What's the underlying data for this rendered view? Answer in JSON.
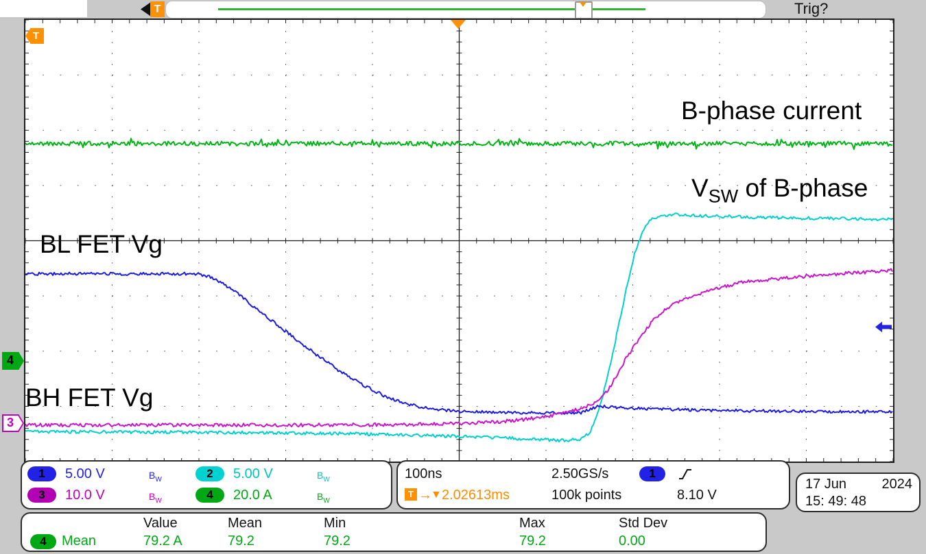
{
  "top": {
    "trig_status": "Trig?",
    "trigger_label": "T"
  },
  "markers": {
    "t_flag": "T",
    "ch4": "4",
    "ch3": "3"
  },
  "labels": {
    "ch4_trace": "B-phase current",
    "vsw_main": "V",
    "vsw_sub": "SW",
    "vsw_rest": " of B-phase",
    "ch1_trace": "BL FET Vg",
    "ch3_trace": "BH FET Vg"
  },
  "bw": {
    "b": "B",
    "w": "W"
  },
  "channels": [
    {
      "id": "1",
      "scale": "5.00 V",
      "color": "#2222e6"
    },
    {
      "id": "2",
      "scale": "5.00 V",
      "color": "#00c3c3"
    },
    {
      "id": "3",
      "scale": "10.0 V",
      "color": "#c000c0"
    },
    {
      "id": "4",
      "scale": "20.0 A",
      "color": "#00a814"
    }
  ],
  "horizontal": {
    "time_per_div": "100ns",
    "sample_rate": "2.50GS/s",
    "record_length": "100k points",
    "trigger_label": "T",
    "arrow": "→",
    "marker": "▼",
    "trigger_delay": "2.02613ms",
    "trigger_source": "1",
    "trigger_level": "8.10 V"
  },
  "datetime": {
    "date": "17 Jun",
    "year": "2024",
    "time": "15: 49: 48"
  },
  "measurements": {
    "headers": [
      "Value",
      "Mean",
      "Min",
      "Max",
      "Std Dev"
    ],
    "row": {
      "ch": "4",
      "name": "Mean",
      "value": "79.2 A",
      "mean": "79.2",
      "min": "79.2",
      "max": "79.2",
      "stddev": "0.00"
    }
  },
  "chart_data": {
    "type": "line",
    "title": "Oscilloscope capture: B-phase switching of multiphase converter",
    "x_axis": {
      "unit": "ns",
      "per_div": 100,
      "divisions": 10,
      "range": [
        -500,
        500
      ],
      "trigger_delay_readout": "2.02613ms"
    },
    "y_axis": {
      "divisions": 8
    },
    "legend_position": "none",
    "grid": "dotted",
    "series": [
      {
        "channel": "1",
        "name": "BL FET Vg",
        "unit": "V",
        "per_div": 5,
        "zero_div": 7.2,
        "color": "#1a1ae0",
        "points": [
          [
            -500,
            13
          ],
          [
            -302,
            13
          ],
          [
            -285,
            12.7
          ],
          [
            -260,
            11.5
          ],
          [
            -230,
            9.6
          ],
          [
            -200,
            7.8
          ],
          [
            -170,
            6.0
          ],
          [
            -140,
            4.3
          ],
          [
            -110,
            2.9
          ],
          [
            -85,
            1.9
          ],
          [
            -60,
            1.2
          ],
          [
            -35,
            0.8
          ],
          [
            -5,
            0.55
          ],
          [
            50,
            0.45
          ],
          [
            100,
            0.4
          ],
          [
            140,
            0.4
          ],
          [
            152,
            0.75
          ],
          [
            160,
            1.05
          ],
          [
            172,
            0.95
          ],
          [
            190,
            0.85
          ],
          [
            230,
            0.75
          ],
          [
            300,
            0.62
          ],
          [
            400,
            0.55
          ],
          [
            500,
            0.5
          ]
        ]
      },
      {
        "channel": "2",
        "name": "Vsw of B-phase",
        "unit": "V",
        "per_div": 5,
        "zero_div": 7.32,
        "color": "#00cfcf",
        "points": [
          [
            -500,
            -0.7
          ],
          [
            -300,
            -0.75
          ],
          [
            -150,
            -0.85
          ],
          [
            -50,
            -1.0
          ],
          [
            30,
            -1.2
          ],
          [
            90,
            -1.4
          ],
          [
            125,
            -1.5
          ],
          [
            140,
            -1.35
          ],
          [
            150,
            -0.8
          ],
          [
            157,
            0.3
          ],
          [
            163,
            1.8
          ],
          [
            170,
            4.0
          ],
          [
            178,
            6.8
          ],
          [
            186,
            9.8
          ],
          [
            194,
            12.8
          ],
          [
            202,
            15.4
          ],
          [
            210,
            17.2
          ],
          [
            218,
            18.3
          ],
          [
            228,
            18.8
          ],
          [
            245,
            19.0
          ],
          [
            280,
            18.85
          ],
          [
            350,
            18.7
          ],
          [
            430,
            18.6
          ],
          [
            500,
            18.55
          ]
        ]
      },
      {
        "channel": "3",
        "name": "BH FET Vg",
        "unit": "V",
        "per_div": 10,
        "zero_div": 7.33,
        "color": "#cc14cc",
        "points": [
          [
            -500,
            -0.1
          ],
          [
            -200,
            -0.1
          ],
          [
            -50,
            0
          ],
          [
            20,
            0.3
          ],
          [
            60,
            0.7
          ],
          [
            95,
            1.3
          ],
          [
            120,
            2.0
          ],
          [
            140,
            2.9
          ],
          [
            152,
            3.6
          ],
          [
            160,
            4.4
          ],
          [
            168,
            5.6
          ],
          [
            176,
            7.4
          ],
          [
            184,
            9.7
          ],
          [
            192,
            11.9
          ],
          [
            200,
            13.8
          ],
          [
            212,
            16.5
          ],
          [
            224,
            19.0
          ],
          [
            238,
            21.0
          ],
          [
            260,
            22.8
          ],
          [
            290,
            24.3
          ],
          [
            326,
            25.8
          ],
          [
            380,
            26.6
          ],
          [
            440,
            27.3
          ],
          [
            500,
            28.0
          ]
        ]
      },
      {
        "channel": "4",
        "name": "B-phase current",
        "unit": "A",
        "per_div": 20,
        "zero_div": 6.2,
        "color": "#00b414",
        "points": [
          [
            -500,
            79.2
          ],
          [
            500,
            79.2
          ]
        ]
      }
    ]
  }
}
